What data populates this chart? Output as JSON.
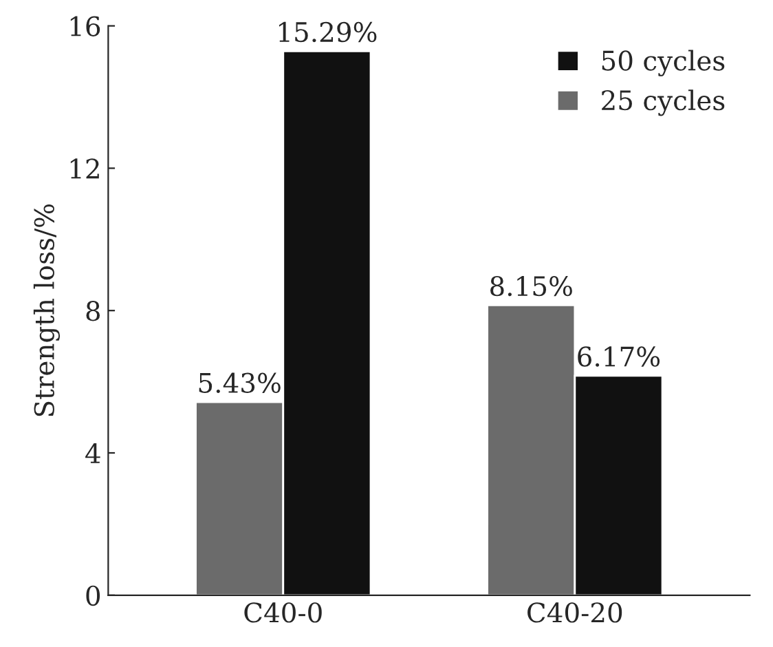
{
  "chart_data": {
    "type": "bar",
    "ylabel": "Strength loss/%",
    "categories": [
      "C40-0",
      "C40-20"
    ],
    "series": [
      {
        "name": "25 cycles",
        "color": "#6b6b6b",
        "values": [
          5.43,
          8.15
        ],
        "value_labels": [
          "5.43%",
          "8.15%"
        ]
      },
      {
        "name": "50 cycles",
        "color": "#111111",
        "values": [
          15.29,
          6.17
        ],
        "value_labels": [
          "15.29%",
          "6.17%"
        ]
      }
    ],
    "ylim": [
      0,
      16
    ],
    "yticks": [
      0,
      4,
      8,
      12,
      16
    ],
    "grid": false,
    "legend": "top right"
  }
}
